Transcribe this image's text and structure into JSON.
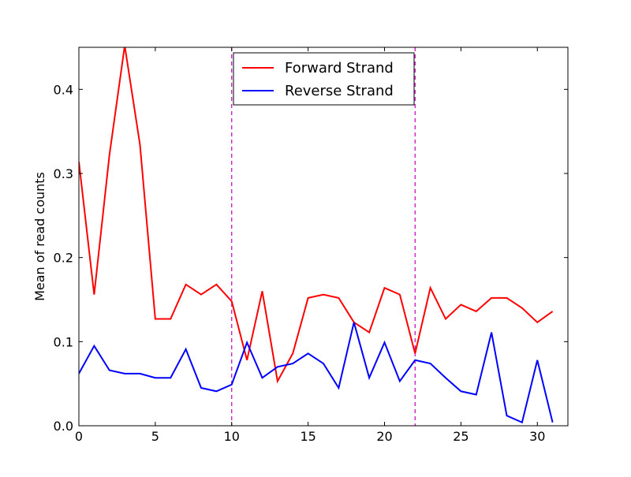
{
  "chart_data": {
    "type": "line",
    "title": "",
    "xlabel": "",
    "ylabel": "Mean of read counts",
    "xlim": [
      0,
      32
    ],
    "ylim": [
      0.0,
      0.45
    ],
    "xticks": [
      0,
      5,
      10,
      15,
      20,
      25,
      30
    ],
    "xtick_labels": [
      "0",
      "5",
      "10",
      "15",
      "20",
      "25",
      "30"
    ],
    "yticks": [
      0.0,
      0.1,
      0.2,
      0.3,
      0.4
    ],
    "ytick_labels": [
      "0.0",
      "0.1",
      "0.2",
      "0.3",
      "0.4"
    ],
    "grid": false,
    "legend_position": "top-center",
    "x": [
      0,
      1,
      2,
      3,
      4,
      5,
      6,
      7,
      8,
      9,
      10,
      11,
      12,
      13,
      14,
      15,
      16,
      17,
      18,
      19,
      20,
      21,
      22,
      23,
      24,
      25,
      26,
      27,
      28,
      29,
      30,
      31
    ],
    "series": [
      {
        "name": "Forward Strand",
        "color": "#ff0000",
        "values": [
          0.314,
          0.156,
          0.322,
          0.452,
          0.334,
          0.127,
          0.127,
          0.168,
          0.156,
          0.168,
          0.148,
          0.078,
          0.16,
          0.053,
          0.086,
          0.152,
          0.156,
          0.152,
          0.123,
          0.111,
          0.164,
          0.156,
          0.086,
          0.164,
          0.127,
          0.144,
          0.136,
          0.152,
          0.152,
          0.14,
          0.123,
          0.136
        ]
      },
      {
        "name": "Reverse Strand",
        "color": "#0000ff",
        "values": [
          0.062,
          0.095,
          0.066,
          0.062,
          0.062,
          0.057,
          0.057,
          0.091,
          0.045,
          0.041,
          0.049,
          0.099,
          0.057,
          0.07,
          0.074,
          0.086,
          0.074,
          0.045,
          0.123,
          0.057,
          0.099,
          0.053,
          0.078,
          0.074,
          0.057,
          0.041,
          0.037,
          0.111,
          0.012,
          0.004,
          0.078,
          0.004
        ]
      }
    ],
    "vlines": [
      {
        "x": 10,
        "color": "#bf00bf",
        "style": "dashed"
      },
      {
        "x": 22,
        "color": "#bf00bf",
        "style": "dashed"
      }
    ]
  }
}
